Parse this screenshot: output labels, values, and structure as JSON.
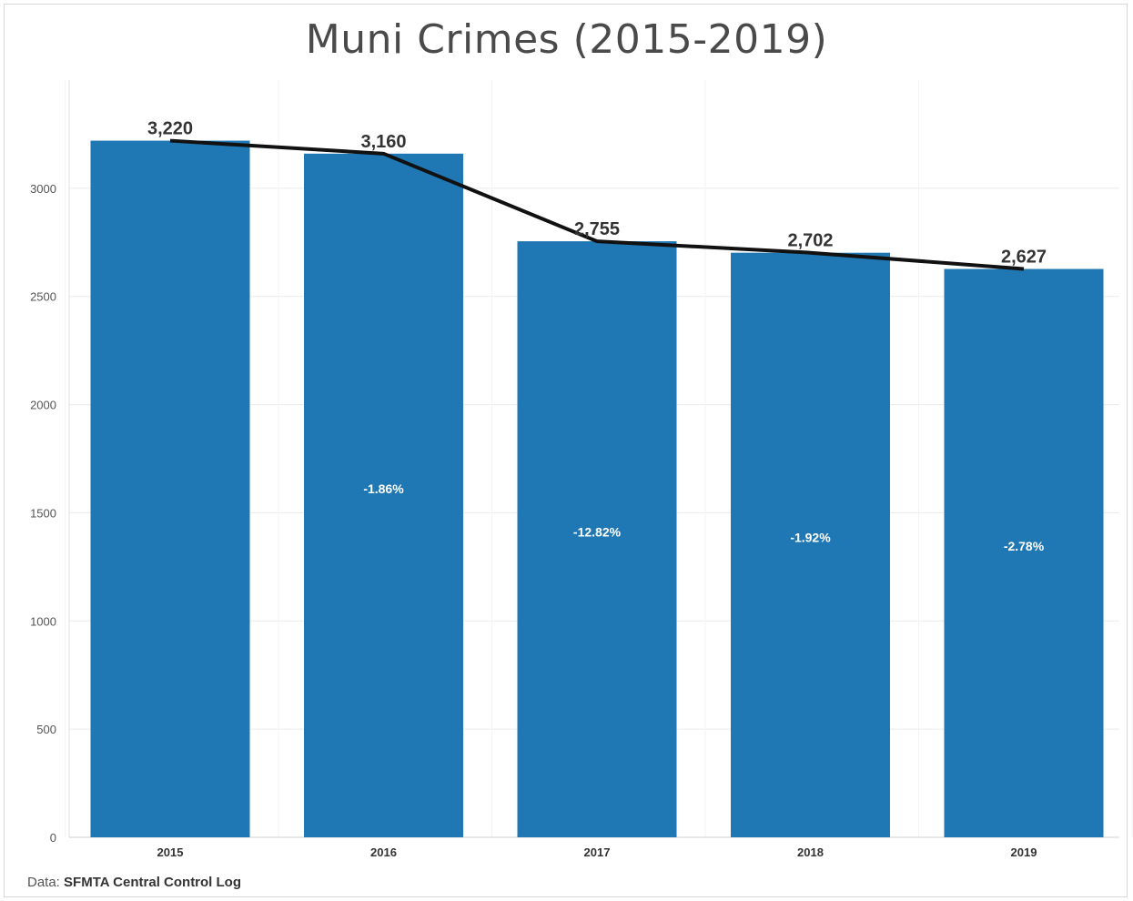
{
  "title": "Muni Crimes (2015-2019)",
  "source": {
    "prefix": "Data:",
    "name": "SFMTA Central Control Log"
  },
  "colors": {
    "bar": "#1f77b4",
    "line": "#111111",
    "grid": "#ececec"
  },
  "chart_data": {
    "type": "bar",
    "title": "Muni Crimes (2015-2019)",
    "xlabel": "",
    "ylabel": "",
    "categories": [
      "2015",
      "2016",
      "2017",
      "2018",
      "2019"
    ],
    "values": [
      3220,
      3160,
      2755,
      2702,
      2627
    ],
    "value_labels": [
      "3,220",
      "3,160",
      "2,755",
      "2,702",
      "2,627"
    ],
    "pct_change_labels": [
      "",
      "-1.86%",
      "-12.82%",
      "-1.92%",
      "-2.78%"
    ],
    "pct_label_values": [
      null,
      1590,
      1390,
      1365,
      1325
    ],
    "overlay_line": {
      "type": "line",
      "values": [
        3220,
        3160,
        2755,
        2702,
        2627
      ]
    },
    "ylim": [
      0,
      3500
    ],
    "yticks": [
      0,
      500,
      1000,
      1500,
      2000,
      2500,
      3000
    ],
    "grid": true
  }
}
